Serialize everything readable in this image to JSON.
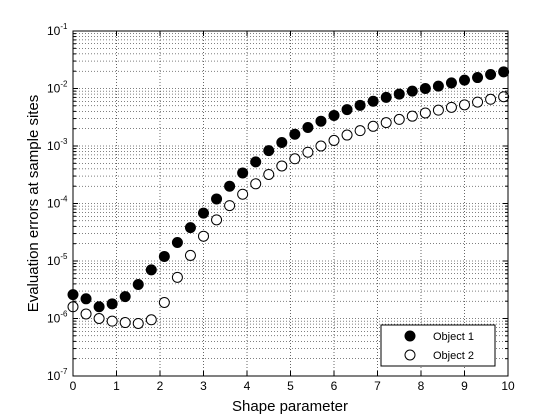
{
  "chart_data": {
    "type": "scatter",
    "xlabel": "Shape parameter",
    "ylabel": "Evaluation errors at sample sites",
    "xlim": [
      0,
      10
    ],
    "ylim": [
      1e-07,
      0.1
    ],
    "yscale": "log",
    "grid": true,
    "legend_position": "bottom-right",
    "x_ticks": [
      "0",
      "1",
      "2",
      "3",
      "4",
      "5",
      "6",
      "7",
      "8",
      "9",
      "10"
    ],
    "y_ticks": [
      {
        "base": "10",
        "exp": "-7"
      },
      {
        "base": "10",
        "exp": "-6"
      },
      {
        "base": "10",
        "exp": "-5"
      },
      {
        "base": "10",
        "exp": "-4"
      },
      {
        "base": "10",
        "exp": "-3"
      },
      {
        "base": "10",
        "exp": "-2"
      },
      {
        "base": "10",
        "exp": "-1"
      }
    ],
    "series": [
      {
        "name": "Object 1",
        "marker": "filled-circle",
        "color": "#000000",
        "x": [
          0.0,
          0.3,
          0.6,
          0.9,
          1.2,
          1.5,
          1.8,
          2.1,
          2.4,
          2.7,
          3.0,
          3.3,
          3.6,
          3.9,
          4.2,
          4.5,
          4.8,
          5.1,
          5.4,
          5.7,
          6.0,
          6.3,
          6.6,
          6.9,
          7.2,
          7.5,
          7.8,
          8.1,
          8.4,
          8.7,
          9.0,
          9.3,
          9.6,
          9.9
        ],
        "y": [
          2.6e-06,
          2.2e-06,
          1.6e-06,
          1.8e-06,
          2.4e-06,
          3.9e-06,
          7e-06,
          1.2e-05,
          2.1e-05,
          3.8e-05,
          6.8e-05,
          0.00012,
          0.0002,
          0.00034,
          0.00053,
          0.00083,
          0.00115,
          0.0016,
          0.0021,
          0.0027,
          0.0034,
          0.0043,
          0.0051,
          0.006,
          0.007,
          0.008,
          0.009,
          0.01,
          0.011,
          0.0125,
          0.014,
          0.0155,
          0.0175,
          0.0195
        ]
      },
      {
        "name": "Object 2",
        "marker": "open-circle",
        "color": "#000000",
        "x": [
          0.0,
          0.3,
          0.6,
          0.9,
          1.2,
          1.5,
          1.8,
          2.1,
          2.4,
          2.7,
          3.0,
          3.3,
          3.6,
          3.9,
          4.2,
          4.5,
          4.8,
          5.1,
          5.4,
          5.7,
          6.0,
          6.3,
          6.6,
          6.9,
          7.2,
          7.5,
          7.8,
          8.1,
          8.4,
          8.7,
          9.0,
          9.3,
          9.6,
          9.9
        ],
        "y": [
          1.6e-06,
          1.2e-06,
          1e-06,
          9e-07,
          8.5e-07,
          8.2e-07,
          9.5e-07,
          1.9e-06,
          5.2e-06,
          1.25e-05,
          2.7e-05,
          5.2e-05,
          9.2e-05,
          0.000145,
          0.00022,
          0.00032,
          0.00045,
          0.0006,
          0.00078,
          0.001,
          0.00125,
          0.00155,
          0.00185,
          0.0022,
          0.00255,
          0.0029,
          0.0033,
          0.00375,
          0.0042,
          0.0047,
          0.0052,
          0.0058,
          0.0065,
          0.0072
        ]
      }
    ]
  }
}
